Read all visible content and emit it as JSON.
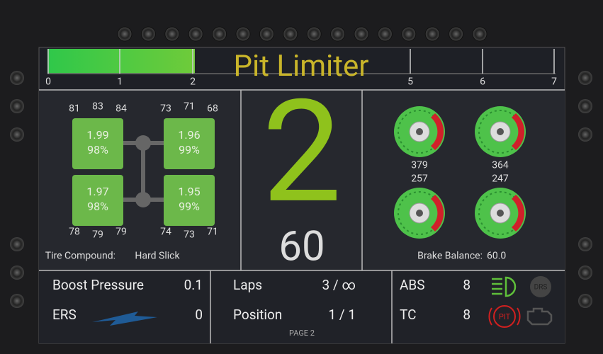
{
  "top_bar": {
    "title": "Pit Limiter",
    "scale_labels": [
      "0",
      "1",
      "2",
      "5",
      "6",
      "7"
    ]
  },
  "tires": {
    "temps": [
      [
        "81",
        "83",
        "84"
      ],
      [
        "73",
        "71",
        "68"
      ],
      [
        "78",
        "79",
        "79"
      ],
      [
        "74",
        "73",
        "71"
      ]
    ],
    "readings": [
      [
        "1.99",
        "98%"
      ],
      [
        "1.96",
        "99%"
      ],
      [
        "1.97",
        "98%"
      ],
      [
        "1.95",
        "99%"
      ]
    ],
    "compound_label": "Tire Compound:",
    "compound": "Hard Slick"
  },
  "gear": "2",
  "speed": "60",
  "brakes": {
    "temps": [
      "379",
      "364",
      "257",
      "247"
    ],
    "balance_label": "Brake Balance:",
    "balance": "60.0"
  },
  "bottom": {
    "boost": {
      "label": "Boost Pressure",
      "value": "0.1"
    },
    "ers": {
      "label": "ERS",
      "value": "0"
    },
    "laps": {
      "label": "Laps",
      "value": "3 / ∞"
    },
    "position": {
      "label": "Position",
      "value": "1 / 1"
    },
    "page": "PAGE 2",
    "abs": {
      "label": "ABS",
      "value": "8"
    },
    "tc": {
      "label": "TC",
      "value": "8"
    },
    "drs": "DRS",
    "pit": "PIT"
  }
}
